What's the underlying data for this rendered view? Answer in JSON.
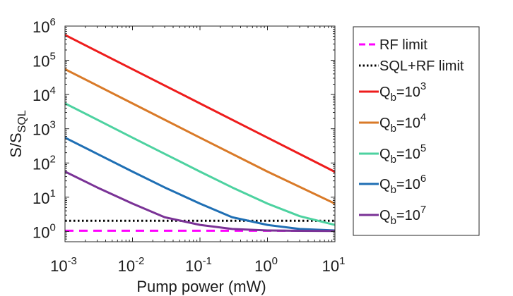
{
  "chart_data": {
    "type": "line",
    "title": "",
    "xlabel": "Pump power (mW)",
    "ylabel": {
      "base": "S/S",
      "sub": "SQL"
    },
    "xscale": "log",
    "yscale": "log",
    "xlim": [
      0.001,
      10
    ],
    "ylim": [
      0.5,
      1000000
    ],
    "x_ticks": [
      {
        "value": 0.001,
        "base": "10",
        "exp": "-3"
      },
      {
        "value": 0.01,
        "base": "10",
        "exp": "-2"
      },
      {
        "value": 0.1,
        "base": "10",
        "exp": "-1"
      },
      {
        "value": 1,
        "base": "10",
        "exp": "0"
      },
      {
        "value": 10,
        "base": "10",
        "exp": "1"
      }
    ],
    "y_ticks": [
      {
        "value": 1,
        "base": "10",
        "exp": "0"
      },
      {
        "value": 10,
        "base": "10",
        "exp": "1"
      },
      {
        "value": 100,
        "base": "10",
        "exp": "2"
      },
      {
        "value": 1000,
        "base": "10",
        "exp": "3"
      },
      {
        "value": 10000,
        "base": "10",
        "exp": "4"
      },
      {
        "value": 100000,
        "base": "10",
        "exp": "5"
      },
      {
        "value": 1000000,
        "base": "10",
        "exp": "6"
      }
    ],
    "grid": false,
    "legend_position": "outside-right",
    "series": [
      {
        "name": "RF limit",
        "label": {
          "text": "RF limit"
        },
        "color": "#ff00ff",
        "style": "dashed",
        "x": [
          0.001,
          10
        ],
        "y": [
          1.05,
          1.05
        ]
      },
      {
        "name": "SQL+RF limit",
        "label": {
          "text": "SQL+RF limit"
        },
        "color": "#000000",
        "style": "dotted",
        "x": [
          0.001,
          10
        ],
        "y": [
          2.05,
          2.05
        ]
      },
      {
        "name": "Q_b=10^3",
        "label": {
          "base": "Q",
          "sub": "b",
          "mid": "=10",
          "sup": "3"
        },
        "color": "#ee1c1c",
        "style": "solid",
        "x": [
          0.001,
          0.01,
          0.1,
          1,
          10
        ],
        "y": [
          550000,
          55000,
          5500,
          550,
          55
        ]
      },
      {
        "name": "Q_b=10^4",
        "label": {
          "base": "Q",
          "sub": "b",
          "mid": "=10",
          "sup": "4"
        },
        "color": "#d97a28",
        "style": "solid",
        "x": [
          0.001,
          0.01,
          0.1,
          1,
          10
        ],
        "y": [
          55000,
          5500,
          550,
          56,
          6.5
        ]
      },
      {
        "name": "Q_b=10^5",
        "label": {
          "base": "Q",
          "sub": "b",
          "mid": "=10",
          "sup": "5"
        },
        "color": "#4dd2a0",
        "style": "solid",
        "x": [
          0.001,
          0.003,
          0.01,
          0.03,
          0.1,
          0.3,
          1,
          3,
          10
        ],
        "y": [
          5500,
          1840,
          550,
          185,
          56,
          19.3,
          6.5,
          2.8,
          1.55
        ]
      },
      {
        "name": "Q_b=10^6",
        "label": {
          "base": "Q",
          "sub": "b",
          "mid": "=10",
          "sup": "6"
        },
        "color": "#1f6fb4",
        "style": "solid",
        "x": [
          0.001,
          0.003,
          0.01,
          0.03,
          0.1,
          0.3,
          1,
          3,
          10
        ],
        "y": [
          550,
          185,
          56,
          19.3,
          6.5,
          2.6,
          1.55,
          1.18,
          1.07
        ]
      },
      {
        "name": "Q_b=10^7",
        "label": {
          "base": "Q",
          "sub": "b",
          "mid": "=10",
          "sup": "7"
        },
        "color": "#7a3296",
        "style": "solid",
        "x": [
          0.001,
          0.003,
          0.01,
          0.03,
          0.1,
          0.3,
          1,
          3,
          10
        ],
        "y": [
          56,
          19.3,
          6.5,
          2.6,
          1.55,
          1.18,
          1.07,
          1.04,
          1.03
        ]
      }
    ]
  }
}
